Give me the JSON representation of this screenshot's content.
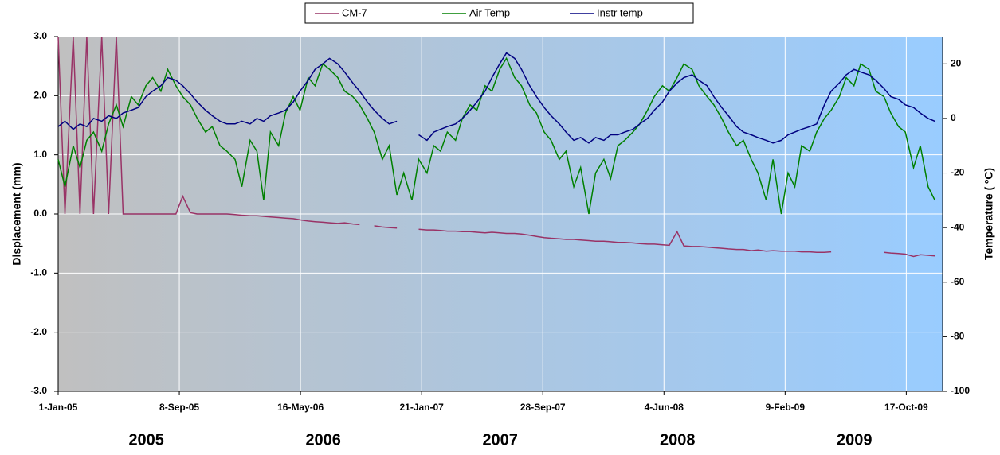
{
  "chart_data": {
    "type": "line",
    "legend": "top",
    "grid": true,
    "y_label": "Displacement (mm)",
    "y2_label": "Temperature ( ºC)",
    "xlim": [
      "2005-01-01",
      "2009-12-31"
    ],
    "xticks": [
      {
        "value": "2005-01-01",
        "label": "1-Jan-05"
      },
      {
        "value": "2005-09-08",
        "label": "8-Sep-05"
      },
      {
        "value": "2006-05-16",
        "label": "16-May-06"
      },
      {
        "value": "2007-01-21",
        "label": "21-Jan-07"
      },
      {
        "value": "2007-09-28",
        "label": "28-Sep-07"
      },
      {
        "value": "2008-06-04",
        "label": "4-Jun-08"
      },
      {
        "value": "2009-02-09",
        "label": "9-Feb-09"
      },
      {
        "value": "2009-10-17",
        "label": "17-Oct-09"
      }
    ],
    "ylim": [
      -3,
      3
    ],
    "yticks": [
      {
        "value": 3,
        "label": "3.0"
      },
      {
        "value": 2,
        "label": "2.0"
      },
      {
        "value": 1,
        "label": "1.0"
      },
      {
        "value": 0,
        "label": "0.0"
      },
      {
        "value": -1,
        "label": "-1.0"
      },
      {
        "value": -2,
        "label": "-2.0"
      },
      {
        "value": -3,
        "label": "-3.0"
      }
    ],
    "y2lim": [
      -100,
      30
    ],
    "y2ticks": [
      20,
      0,
      -20,
      -40,
      -60,
      -80,
      -100
    ],
    "annotations": [
      {
        "text": "2005",
        "x": "2005-07-02"
      },
      {
        "text": "2006",
        "x": "2006-07-02"
      },
      {
        "text": "2007",
        "x": "2007-07-02"
      },
      {
        "text": "2008",
        "x": "2008-07-02"
      },
      {
        "text": "2009",
        "x": "2009-07-02"
      }
    ],
    "x": [
      "2005-01-01",
      "2005-01-15",
      "2005-02-01",
      "2005-02-15",
      "2005-03-01",
      "2005-03-15",
      "2005-04-01",
      "2005-04-15",
      "2005-05-01",
      "2005-05-15",
      "2005-06-01",
      "2005-06-15",
      "2005-07-01",
      "2005-07-15",
      "2005-08-01",
      "2005-08-15",
      "2005-09-01",
      "2005-09-15",
      "2005-10-01",
      "2005-10-15",
      "2005-11-01",
      "2005-11-15",
      "2005-12-01",
      "2005-12-15",
      "2006-01-01",
      "2006-01-15",
      "2006-02-01",
      "2006-02-15",
      "2006-03-01",
      "2006-03-15",
      "2006-04-01",
      "2006-04-15",
      "2006-05-01",
      "2006-05-15",
      "2006-06-01",
      "2006-06-15",
      "2006-07-01",
      "2006-07-15",
      "2006-08-01",
      "2006-08-15",
      "2006-09-01",
      "2006-09-15",
      "2006-10-01",
      "2006-10-15",
      "2006-11-01",
      "2006-11-15",
      "2006-12-01",
      "2006-12-15",
      "2007-01-01",
      "2007-01-15",
      "2007-02-01",
      "2007-02-15",
      "2007-03-01",
      "2007-03-15",
      "2007-04-01",
      "2007-04-15",
      "2007-05-01",
      "2007-05-15",
      "2007-06-01",
      "2007-06-15",
      "2007-07-01",
      "2007-07-15",
      "2007-08-01",
      "2007-08-15",
      "2007-09-01",
      "2007-09-15",
      "2007-10-01",
      "2007-10-15",
      "2007-11-01",
      "2007-11-15",
      "2007-12-01",
      "2007-12-15",
      "2008-01-01",
      "2008-01-15",
      "2008-02-01",
      "2008-02-15",
      "2008-03-01",
      "2008-03-15",
      "2008-04-01",
      "2008-04-15",
      "2008-05-01",
      "2008-05-15",
      "2008-06-01",
      "2008-06-15",
      "2008-07-01",
      "2008-07-15",
      "2008-08-01",
      "2008-08-15",
      "2008-09-01",
      "2008-09-15",
      "2008-10-01",
      "2008-10-15",
      "2008-11-01",
      "2008-11-15",
      "2008-12-01",
      "2008-12-15",
      "2009-01-01",
      "2009-01-15",
      "2009-02-01",
      "2009-02-15",
      "2009-03-01",
      "2009-03-15",
      "2009-04-01",
      "2009-04-15",
      "2009-05-01",
      "2009-05-15",
      "2009-06-01",
      "2009-06-15",
      "2009-07-01",
      "2009-07-15",
      "2009-08-01",
      "2009-08-15",
      "2009-09-01",
      "2009-09-15",
      "2009-10-01",
      "2009-10-15",
      "2009-11-01",
      "2009-11-15",
      "2009-12-01",
      "2009-12-15"
    ],
    "series": [
      {
        "name": "CM-7",
        "color": "#993366",
        "axis": "y",
        "values": [
          3,
          0,
          3,
          0,
          3,
          0,
          3,
          0,
          3,
          0,
          0,
          0,
          0,
          0,
          0,
          0,
          0,
          0.3,
          0.02,
          0,
          0,
          0,
          0,
          0,
          -0.01,
          -0.02,
          -0.03,
          -0.03,
          -0.04,
          -0.05,
          -0.06,
          -0.07,
          -0.08,
          -0.1,
          -0.12,
          -0.13,
          -0.14,
          -0.15,
          -0.16,
          -0.15,
          -0.17,
          -0.18,
          null,
          -0.2,
          -0.22,
          -0.23,
          -0.24,
          null,
          null,
          -0.26,
          -0.27,
          -0.27,
          -0.28,
          -0.29,
          -0.29,
          -0.3,
          -0.3,
          -0.31,
          -0.32,
          -0.31,
          -0.32,
          -0.33,
          -0.33,
          -0.34,
          -0.36,
          -0.38,
          -0.4,
          -0.41,
          -0.42,
          -0.43,
          -0.43,
          -0.44,
          -0.45,
          -0.46,
          -0.46,
          -0.47,
          -0.48,
          -0.48,
          -0.49,
          -0.5,
          -0.51,
          -0.51,
          -0.52,
          -0.53,
          -0.3,
          -0.54,
          -0.55,
          -0.55,
          -0.56,
          -0.57,
          -0.58,
          -0.59,
          -0.6,
          -0.6,
          -0.62,
          -0.61,
          -0.63,
          -0.62,
          -0.63,
          -0.63,
          -0.63,
          -0.64,
          -0.64,
          -0.65,
          -0.65,
          -0.64,
          null,
          null,
          null,
          null,
          null,
          null,
          -0.65,
          -0.66,
          -0.67,
          -0.68,
          -0.72,
          -0.69,
          -0.7,
          -0.71
        ]
      },
      {
        "name": "Air Temp",
        "color": "#008000",
        "axis": "y2",
        "values": [
          -15,
          -25,
          -10,
          -18,
          -8,
          -5,
          -12,
          -2,
          5,
          -3,
          8,
          5,
          12,
          15,
          10,
          18,
          12,
          8,
          5,
          0,
          -5,
          -3,
          -10,
          -12,
          -15,
          -25,
          -8,
          -12,
          -30,
          -5,
          -10,
          2,
          8,
          3,
          15,
          12,
          20,
          18,
          15,
          10,
          8,
          5,
          0,
          -5,
          -15,
          -10,
          -28,
          -20,
          -30,
          -15,
          -20,
          -10,
          -12,
          -5,
          -8,
          0,
          5,
          3,
          12,
          10,
          18,
          22,
          15,
          12,
          5,
          2,
          -5,
          -8,
          -15,
          -12,
          -25,
          -18,
          -35,
          -20,
          -15,
          -22,
          -10,
          -8,
          -5,
          -2,
          3,
          8,
          12,
          10,
          15,
          20,
          18,
          12,
          8,
          5,
          0,
          -5,
          -10,
          -8,
          -15,
          -20,
          -30,
          -15,
          -35,
          -20,
          -25,
          -10,
          -12,
          -5,
          0,
          3,
          8,
          15,
          12,
          20,
          18,
          10,
          8,
          2,
          -3,
          -5,
          -18,
          -10,
          -25,
          -30
        ]
      },
      {
        "name": "Instr temp",
        "color": "#000080",
        "axis": "y2",
        "values": [
          -3,
          -1,
          -4,
          -2,
          -3,
          0,
          -1,
          1,
          0,
          2,
          3,
          4,
          8,
          10,
          12,
          15,
          14,
          12,
          9,
          6,
          3,
          1,
          -1,
          -2,
          -2,
          -1,
          -2,
          0,
          -1,
          1,
          2,
          3,
          6,
          10,
          14,
          18,
          20,
          22,
          20,
          17,
          13,
          10,
          6,
          3,
          0,
          -2,
          -1,
          null,
          null,
          -6,
          -8,
          -5,
          -4,
          -3,
          -2,
          0,
          3,
          6,
          10,
          15,
          20,
          24,
          22,
          18,
          12,
          8,
          4,
          1,
          -2,
          -5,
          -8,
          -7,
          -9,
          -7,
          -8,
          -6,
          -6,
          -5,
          -4,
          -2,
          0,
          3,
          6,
          10,
          13,
          15,
          16,
          14,
          12,
          8,
          4,
          1,
          -3,
          -5,
          -6,
          -7,
          -8,
          -9,
          -8,
          -6,
          -5,
          -4,
          -3,
          -2,
          5,
          10,
          13,
          16,
          18,
          17,
          16,
          14,
          11,
          8,
          7,
          5,
          4,
          2,
          0,
          -1
        ]
      }
    ]
  }
}
